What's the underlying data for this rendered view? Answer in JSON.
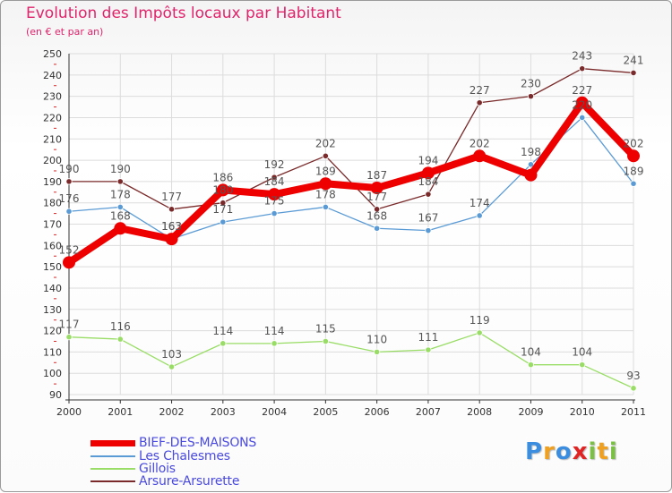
{
  "header": {
    "title": "Evolution des Impôts locaux par Habitant",
    "subtitle": "(en € et par an)"
  },
  "chart_data": {
    "type": "line",
    "title": "Evolution des Impôts locaux par Habitant",
    "subtitle": "(en € et par an)",
    "xlabel": "",
    "ylabel": "",
    "ylim": [
      90,
      250
    ],
    "y_ticks": [
      90,
      100,
      110,
      120,
      130,
      140,
      150,
      160,
      170,
      180,
      190,
      200,
      210,
      220,
      230,
      240,
      250
    ],
    "categories": [
      "2000",
      "2001",
      "2002",
      "2003",
      "2004",
      "2005",
      "2006",
      "2007",
      "2008",
      "2009",
      "2010",
      "2011"
    ],
    "grid": true,
    "legend_position": "bottom-left",
    "series": [
      {
        "name": "BIEF-DES-MAISONS",
        "values": [
          152,
          168,
          163,
          186,
          184,
          189,
          187,
          194,
          202,
          193,
          227,
          202
        ],
        "color": "#ee0000",
        "emphasis": "thick",
        "labels": [
          "152",
          "168",
          "163",
          "186",
          "184",
          "189",
          "187",
          "194",
          "202",
          "",
          "227",
          "202"
        ]
      },
      {
        "name": "Les Chalesmes",
        "values": [
          176,
          178,
          163,
          171,
          175,
          178,
          168,
          167,
          174,
          198,
          220,
          189
        ],
        "color": "#5b9bd5",
        "emphasis": "thin",
        "labels": [
          "176",
          "178",
          "163",
          "171",
          "175",
          "178",
          "168",
          "167",
          "174",
          "198",
          "220",
          "189"
        ]
      },
      {
        "name": "Gillois",
        "values": [
          117,
          116,
          103,
          114,
          114,
          115,
          110,
          111,
          119,
          104,
          104,
          93
        ],
        "color": "#99dd66",
        "emphasis": "thin",
        "labels": [
          "117",
          "116",
          "103",
          "114",
          "114",
          "115",
          "110",
          "111",
          "119",
          "104",
          "104",
          "93"
        ]
      },
      {
        "name": "Arsure-Arsurette",
        "values": [
          190,
          190,
          177,
          180,
          192,
          202,
          177,
          184,
          227,
          230,
          243,
          241
        ],
        "color": "#7a2a2a",
        "emphasis": "thin",
        "labels": [
          "190",
          "190",
          "177",
          "180",
          "192",
          "202",
          "177",
          "184",
          "227",
          "230",
          "243",
          "241"
        ]
      }
    ]
  },
  "legend": {
    "items": [
      {
        "label": "BIEF-DES-MAISONS",
        "color": "#ee0000",
        "text_color": "#4a4ae0"
      },
      {
        "label": "Les Chalesmes",
        "color": "#5b9bd5",
        "text_color": "#4a4ae0"
      },
      {
        "label": "Gillois",
        "color": "#99dd66",
        "text_color": "#4a4ae0"
      },
      {
        "label": "Arsure-Arsurette",
        "color": "#7a2a2a",
        "text_color": "#4a4ae0"
      }
    ]
  },
  "brand": {
    "text": "Proxiti",
    "letters": [
      {
        "ch": "P",
        "color": "#3b8de0"
      },
      {
        "ch": "r",
        "color": "#f0a020"
      },
      {
        "ch": "o",
        "color": "#3b8de0"
      },
      {
        "ch": "x",
        "color": "#e02424"
      },
      {
        "ch": "i",
        "color": "#7ac043"
      },
      {
        "ch": "t",
        "color": "#f0a020"
      },
      {
        "ch": "i",
        "color": "#7ac043"
      }
    ]
  },
  "colors": {
    "title": "#e0246b",
    "axis_text": "#333333",
    "grid": "#dcdcdc",
    "label_text": "#555555"
  }
}
